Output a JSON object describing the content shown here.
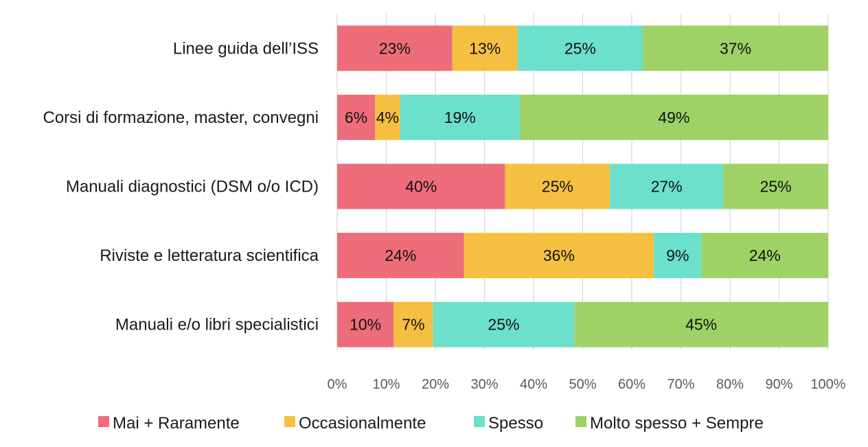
{
  "chart_data": {
    "type": "bar",
    "orientation": "horizontal",
    "stacked": "percent",
    "title": "",
    "xlabel": "",
    "ylabel": "",
    "categories": [
      "Linee guida dell’ISS",
      "Corsi di formazione, master, convegni",
      "Manuali diagnostici (DSM o/o ICD)",
      "Riviste e letteratura scientifica",
      "Manuali e/o libri specialistici"
    ],
    "series": [
      {
        "name": "Mai + Raramente",
        "color": "#ED6D7A",
        "values": [
          23,
          6,
          40,
          24,
          10
        ],
        "labels": [
          "23%",
          "6%",
          "40%",
          "24%",
          "10%"
        ]
      },
      {
        "name": "Occasionalmente",
        "color": "#F5BF42",
        "values": [
          13,
          4,
          25,
          36,
          7
        ],
        "labels": [
          "13%",
          "4%",
          "25%",
          "36%",
          "7%"
        ]
      },
      {
        "name": "Spesso",
        "color": "#6BE0CC",
        "values": [
          25,
          19,
          27,
          9,
          25
        ],
        "labels": [
          "25%",
          "19%",
          "27%",
          "9%",
          "25%"
        ]
      },
      {
        "name": "Molto spesso + Sempre",
        "color": "#9FD266",
        "values": [
          37,
          49,
          25,
          24,
          45
        ],
        "labels": [
          "37%",
          "49%",
          "25%",
          "24%",
          "45%"
        ]
      }
    ],
    "xlim": [
      0,
      100
    ],
    "xticks": [
      0,
      10,
      20,
      30,
      40,
      50,
      60,
      70,
      80,
      90,
      100
    ],
    "xtick_labels": [
      "0%",
      "10%",
      "20%",
      "30%",
      "40%",
      "50%",
      "60%",
      "70%",
      "80%",
      "90%",
      "100%"
    ],
    "grid": "vertical",
    "gridline_color": "#D9D9D9",
    "legend_position": "bottom"
  }
}
